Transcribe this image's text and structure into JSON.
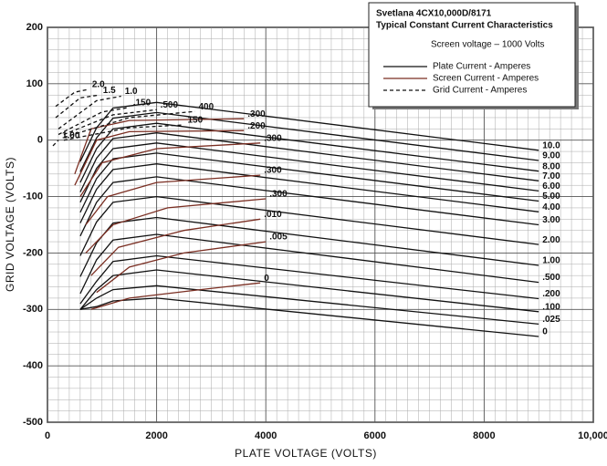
{
  "chart_data": {
    "type": "line",
    "title": "Svetlana 4CX10,000D/8171",
    "subtitle": "Typical Constant Current Characteristics",
    "annotation": "Screen voltage – 1000 Volts",
    "xlabel": "PLATE VOLTAGE (VOLTS)",
    "ylabel": "GRID VOLTAGE (VOLTS)",
    "xlim": [
      0,
      10000
    ],
    "ylim": [
      -500,
      200
    ],
    "xticks": [
      0,
      2000,
      4000,
      6000,
      8000,
      {
        "value": 10000,
        "label": "10,000"
      }
    ],
    "yticks": [
      200,
      100,
      0,
      -100,
      -200,
      -300,
      -400,
      -500
    ],
    "grid": true,
    "legend": {
      "position": "top-right",
      "entries": [
        {
          "label": "Plate Current - Amperes",
          "color": "#111111",
          "style": "solid"
        },
        {
          "label": "Screen Current - Amperes",
          "color": "#7a2e22",
          "style": "solid"
        },
        {
          "label": "Grid Current - Amperes",
          "color": "#111111",
          "style": "dashed"
        }
      ]
    },
    "series": [
      {
        "name": "10.0",
        "color": "#111111",
        "style": "solid",
        "x": [
          600,
          900,
          1200,
          2000,
          9000
        ],
        "values": [
          -38,
          22,
          57,
          67,
          -18
        ]
      },
      {
        "name": "9.00",
        "color": "#111111",
        "style": "solid",
        "x": [
          600,
          900,
          1200,
          2000,
          9000
        ],
        "values": [
          -56,
          4,
          39,
          49,
          -36
        ]
      },
      {
        "name": "8.00",
        "color": "#111111",
        "style": "solid",
        "x": [
          600,
          900,
          1200,
          2000,
          9000
        ],
        "values": [
          -75,
          -15,
          20,
          30,
          -55
        ]
      },
      {
        "name": "7.00",
        "color": "#111111",
        "style": "solid",
        "x": [
          600,
          900,
          1200,
          2000,
          9000
        ],
        "values": [
          -92,
          -32,
          3,
          13,
          -72
        ]
      },
      {
        "name": "6.00",
        "color": "#111111",
        "style": "solid",
        "x": [
          600,
          900,
          1200,
          2000,
          9000
        ],
        "values": [
          -110,
          -50,
          -15,
          -5,
          -90
        ]
      },
      {
        "name": "5.00",
        "color": "#111111",
        "style": "solid",
        "x": [
          600,
          900,
          1200,
          2000,
          9000
        ],
        "values": [
          -128,
          -68,
          -33,
          -23,
          -108
        ]
      },
      {
        "name": "4.00",
        "color": "#111111",
        "style": "solid",
        "x": [
          600,
          900,
          1200,
          2000,
          9000
        ],
        "values": [
          -147,
          -87,
          -52,
          -42,
          -127
        ]
      },
      {
        "name": "3.00",
        "color": "#111111",
        "style": "solid",
        "x": [
          600,
          900,
          1200,
          2000,
          9000
        ],
        "values": [
          -170,
          -110,
          -75,
          -65,
          -150
        ]
      },
      {
        "name": "2.00",
        "color": "#111111",
        "style": "solid",
        "x": [
          600,
          900,
          1200,
          2000,
          9000
        ],
        "values": [
          -205,
          -145,
          -110,
          -100,
          -185
        ]
      },
      {
        "name": "1.00",
        "color": "#111111",
        "style": "solid",
        "x": [
          600,
          900,
          1200,
          2000,
          9000
        ],
        "values": [
          -242,
          -182,
          -147,
          -137,
          -222
        ]
      },
      {
        "name": ".500",
        "color": "#111111",
        "style": "solid",
        "x": [
          600,
          900,
          1200,
          2000,
          9000
        ],
        "values": [
          -272,
          -212,
          -177,
          -167,
          -252
        ]
      },
      {
        "name": ".200",
        "color": "#111111",
        "style": "solid",
        "x": [
          600,
          900,
          1200,
          2000,
          9000
        ],
        "values": [
          -290,
          -250,
          -215,
          -205,
          -281
        ]
      },
      {
        "name": ".100",
        "color": "#111111",
        "style": "solid",
        "x": [
          600,
          900,
          1200,
          2000,
          9000
        ],
        "values": [
          -300,
          -265,
          -240,
          -230,
          -304
        ]
      },
      {
        "name": ".025",
        "color": "#111111",
        "style": "solid",
        "x": [
          600,
          900,
          1200,
          2000,
          9000
        ],
        "values": [
          -300,
          -280,
          -265,
          -258,
          -326
        ]
      },
      {
        "name": "0",
        "color": "#111111",
        "style": "solid",
        "x": [
          600,
          900,
          1200,
          2000,
          9000
        ],
        "values": [
          -300,
          -295,
          -285,
          -280,
          -348
        ]
      },
      {
        "name": ".300",
        "color": "#7a2e22",
        "style": "solid",
        "x": [
          500,
          800,
          1500,
          3600
        ],
        "values": [
          -60,
          20,
          35,
          38
        ]
      },
      {
        "name": ".200",
        "color": "#7a2e22",
        "style": "solid",
        "x": [
          500,
          900,
          1500,
          3600
        ],
        "values": [
          -80,
          0,
          15,
          17
        ]
      },
      {
        "name": ".300",
        "color": "#7a2e22",
        "style": "solid",
        "x": [
          600,
          1000,
          2000,
          3900
        ],
        "values": [
          -100,
          -40,
          -15,
          -5
        ]
      },
      {
        "name": ".300",
        "color": "#7a2e22",
        "style": "solid",
        "x": [
          700,
          1100,
          2000,
          3900
        ],
        "values": [
          -150,
          -100,
          -75,
          -62
        ]
      },
      {
        "name": ".300",
        "color": "#7a2e22",
        "style": "solid",
        "x": [
          700,
          1200,
          2200,
          4000
        ],
        "values": [
          -200,
          -150,
          -120,
          -104
        ]
      },
      {
        "name": ".010",
        "color": "#7a2e22",
        "style": "solid",
        "x": [
          800,
          1300,
          2500,
          3900
        ],
        "values": [
          -240,
          -190,
          -160,
          -140
        ]
      },
      {
        "name": ".005",
        "color": "#7a2e22",
        "style": "solid",
        "x": [
          900,
          1500,
          2500,
          4000
        ],
        "values": [
          -270,
          -225,
          -200,
          -180
        ]
      },
      {
        "name": "0",
        "color": "#7a2e22",
        "style": "solid",
        "x": [
          800,
          1500,
          2800,
          3900
        ],
        "values": [
          -300,
          -280,
          -265,
          -253
        ]
      },
      {
        "name": "2.0",
        "color": "#111111",
        "style": "dashed",
        "x": [
          150,
          500,
          750
        ],
        "values": [
          60,
          85,
          90
        ]
      },
      {
        "name": "1.5",
        "color": "#111111",
        "style": "dashed",
        "x": [
          150,
          600,
          950
        ],
        "values": [
          40,
          75,
          80
        ]
      },
      {
        "name": "1.0",
        "color": "#111111",
        "style": "dashed",
        "x": [
          200,
          900,
          1350
        ],
        "values": [
          20,
          70,
          78
        ]
      },
      {
        "name": ".150",
        "color": "#111111",
        "style": "dashed",
        "x": [
          200,
          1000,
          1500
        ],
        "values": [
          10,
          50,
          58
        ]
      },
      {
        "name": ".500",
        "color": "#111111",
        "style": "dashed",
        "x": [
          300,
          1200,
          2000
        ],
        "values": [
          10,
          45,
          54
        ]
      },
      {
        "name": "400",
        "color": "#111111",
        "style": "dashed",
        "x": [
          300,
          1500,
          2700
        ],
        "values": [
          5,
          40,
          51
        ]
      },
      {
        "name": "150",
        "color": "#111111",
        "style": "dashed",
        "x": [
          300,
          1500,
          2500
        ],
        "values": [
          0,
          22,
          27
        ]
      },
      {
        "name": "1.00",
        "color": "#111111",
        "style": "dashed",
        "x": [
          100,
          200
        ],
        "values": [
          -10,
          0
        ]
      }
    ]
  }
}
